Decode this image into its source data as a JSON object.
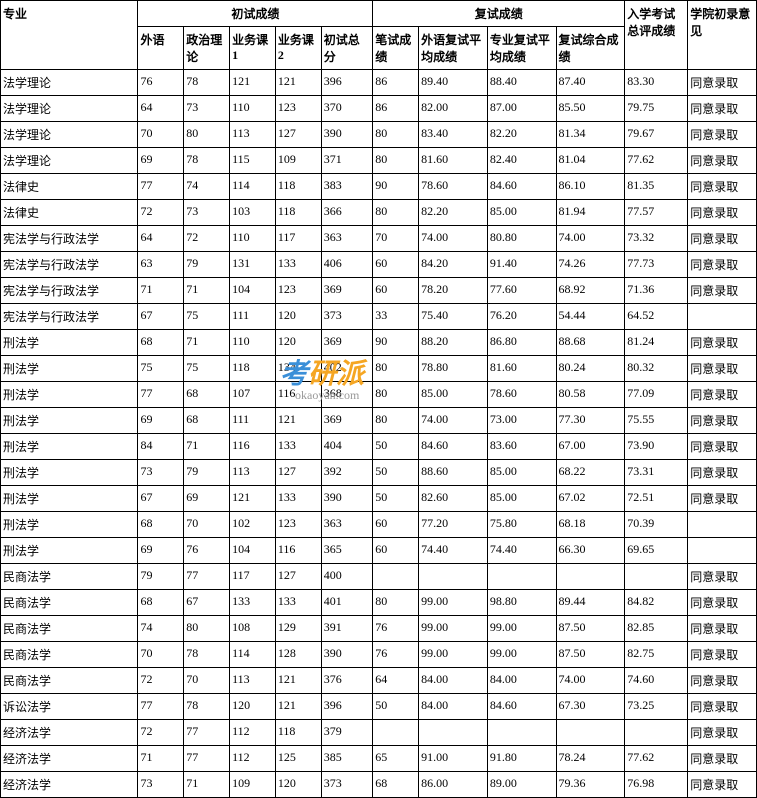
{
  "headers": {
    "major": "专业",
    "prelim_group": "初试成绩",
    "retest_group": "复试成绩",
    "final_total": "入学考试总评成绩",
    "opinion": "学院初录意见",
    "foreign": "外语",
    "politics": "政治理论",
    "course1": "业务课1",
    "course2": "业务课2",
    "prelim_total": "初试总分",
    "written": "笔试成绩",
    "retest_foreign": "外语复试平均成绩",
    "retest_major": "专业复试平均成绩",
    "retest_comp": "复试综合成绩"
  },
  "rows": [
    {
      "major": "法学理论",
      "foreign": "76",
      "politics": "78",
      "c1": "121",
      "c2": "121",
      "ptotal": "396",
      "written": "86",
      "rf": "89.40",
      "rm": "88.40",
      "rc": "87.40",
      "final": "83.30",
      "op": "同意录取"
    },
    {
      "major": "法学理论",
      "foreign": "64",
      "politics": "73",
      "c1": "110",
      "c2": "123",
      "ptotal": "370",
      "written": "86",
      "rf": "82.00",
      "rm": "87.00",
      "rc": "85.50",
      "final": "79.75",
      "op": "同意录取"
    },
    {
      "major": "法学理论",
      "foreign": "70",
      "politics": "80",
      "c1": "113",
      "c2": "127",
      "ptotal": "390",
      "written": "80",
      "rf": "83.40",
      "rm": "82.20",
      "rc": "81.34",
      "final": "79.67",
      "op": "同意录取"
    },
    {
      "major": "法学理论",
      "foreign": "69",
      "politics": "78",
      "c1": "115",
      "c2": "109",
      "ptotal": "371",
      "written": "80",
      "rf": "81.60",
      "rm": "82.40",
      "rc": "81.04",
      "final": "77.62",
      "op": "同意录取"
    },
    {
      "major": "法律史",
      "foreign": "77",
      "politics": "74",
      "c1": "114",
      "c2": "118",
      "ptotal": "383",
      "written": "90",
      "rf": "78.60",
      "rm": "84.60",
      "rc": "86.10",
      "final": "81.35",
      "op": "同意录取"
    },
    {
      "major": "法律史",
      "foreign": "72",
      "politics": "73",
      "c1": "103",
      "c2": "118",
      "ptotal": "366",
      "written": "80",
      "rf": "82.20",
      "rm": "85.00",
      "rc": "81.94",
      "final": "77.57",
      "op": "同意录取"
    },
    {
      "major": "宪法学与行政法学",
      "foreign": "64",
      "politics": "72",
      "c1": "110",
      "c2": "117",
      "ptotal": "363",
      "written": "70",
      "rf": "74.00",
      "rm": "80.80",
      "rc": "74.00",
      "final": "73.32",
      "op": "同意录取"
    },
    {
      "major": "宪法学与行政法学",
      "foreign": "63",
      "politics": "79",
      "c1": "131",
      "c2": "133",
      "ptotal": "406",
      "written": "60",
      "rf": "84.20",
      "rm": "91.40",
      "rc": "74.26",
      "final": "77.73",
      "op": "同意录取"
    },
    {
      "major": "宪法学与行政法学",
      "foreign": "71",
      "politics": "71",
      "c1": "104",
      "c2": "123",
      "ptotal": "369",
      "written": "60",
      "rf": "78.20",
      "rm": "77.60",
      "rc": "68.92",
      "final": "71.36",
      "op": "同意录取"
    },
    {
      "major": "宪法学与行政法学",
      "foreign": "67",
      "politics": "75",
      "c1": "111",
      "c2": "120",
      "ptotal": "373",
      "written": "33",
      "rf": "75.40",
      "rm": "76.20",
      "rc": "54.44",
      "final": "64.52",
      "op": ""
    },
    {
      "major": "刑法学",
      "foreign": "68",
      "politics": "71",
      "c1": "110",
      "c2": "120",
      "ptotal": "369",
      "written": "90",
      "rf": "88.20",
      "rm": "86.80",
      "rc": "88.68",
      "final": "81.24",
      "op": "同意录取"
    },
    {
      "major": "刑法学",
      "foreign": "75",
      "politics": "75",
      "c1": "118",
      "c2": "134",
      "ptotal": "402",
      "written": "80",
      "rf": "78.80",
      "rm": "81.60",
      "rc": "80.24",
      "final": "80.32",
      "op": "同意录取"
    },
    {
      "major": "刑法学",
      "foreign": "77",
      "politics": "68",
      "c1": "107",
      "c2": "116",
      "ptotal": "368",
      "written": "80",
      "rf": "85.00",
      "rm": "78.60",
      "rc": "80.58",
      "final": "77.09",
      "op": "同意录取"
    },
    {
      "major": "刑法学",
      "foreign": "69",
      "politics": "68",
      "c1": "111",
      "c2": "121",
      "ptotal": "369",
      "written": "80",
      "rf": "74.00",
      "rm": "73.00",
      "rc": "77.30",
      "final": "75.55",
      "op": "同意录取"
    },
    {
      "major": "刑法学",
      "foreign": "84",
      "politics": "71",
      "c1": "116",
      "c2": "133",
      "ptotal": "404",
      "written": "50",
      "rf": "84.60",
      "rm": "83.60",
      "rc": "67.00",
      "final": "73.90",
      "op": "同意录取"
    },
    {
      "major": "刑法学",
      "foreign": "73",
      "politics": "79",
      "c1": "113",
      "c2": "127",
      "ptotal": "392",
      "written": "50",
      "rf": "88.60",
      "rm": "85.00",
      "rc": "68.22",
      "final": "73.31",
      "op": "同意录取"
    },
    {
      "major": "刑法学",
      "foreign": "67",
      "politics": "69",
      "c1": "121",
      "c2": "133",
      "ptotal": "390",
      "written": "50",
      "rf": "82.60",
      "rm": "85.00",
      "rc": "67.02",
      "final": "72.51",
      "op": "同意录取"
    },
    {
      "major": "刑法学",
      "foreign": "68",
      "politics": "70",
      "c1": "102",
      "c2": "123",
      "ptotal": "363",
      "written": "60",
      "rf": "77.20",
      "rm": "75.80",
      "rc": "68.18",
      "final": "70.39",
      "op": ""
    },
    {
      "major": "刑法学",
      "foreign": "69",
      "politics": "76",
      "c1": "104",
      "c2": "116",
      "ptotal": "365",
      "written": "60",
      "rf": "74.40",
      "rm": "74.40",
      "rc": "66.30",
      "final": "69.65",
      "op": ""
    },
    {
      "major": "民商法学",
      "foreign": "79",
      "politics": "77",
      "c1": "117",
      "c2": "127",
      "ptotal": "400",
      "written": "",
      "rf": "",
      "rm": "",
      "rc": "",
      "final": "",
      "op": "同意录取"
    },
    {
      "major": "民商法学",
      "foreign": "68",
      "politics": "67",
      "c1": "133",
      "c2": "133",
      "ptotal": "401",
      "written": "80",
      "rf": "99.00",
      "rm": "98.80",
      "rc": "89.44",
      "final": "84.82",
      "op": "同意录取"
    },
    {
      "major": "民商法学",
      "foreign": "74",
      "politics": "80",
      "c1": "108",
      "c2": "129",
      "ptotal": "391",
      "written": "76",
      "rf": "99.00",
      "rm": "99.00",
      "rc": "87.50",
      "final": "82.85",
      "op": "同意录取"
    },
    {
      "major": "民商法学",
      "foreign": "70",
      "politics": "78",
      "c1": "114",
      "c2": "128",
      "ptotal": "390",
      "written": "76",
      "rf": "99.00",
      "rm": "99.00",
      "rc": "87.50",
      "final": "82.75",
      "op": "同意录取"
    },
    {
      "major": "民商法学",
      "foreign": "72",
      "politics": "70",
      "c1": "113",
      "c2": "121",
      "ptotal": "376",
      "written": "64",
      "rf": "84.00",
      "rm": "84.00",
      "rc": "74.00",
      "final": "74.60",
      "op": "同意录取"
    },
    {
      "major": "诉讼法学",
      "foreign": "77",
      "politics": "78",
      "c1": "120",
      "c2": "121",
      "ptotal": "396",
      "written": "50",
      "rf": "84.00",
      "rm": "84.60",
      "rc": "67.30",
      "final": "73.25",
      "op": "同意录取"
    },
    {
      "major": "经济法学",
      "foreign": "72",
      "politics": "77",
      "c1": "112",
      "c2": "118",
      "ptotal": "379",
      "written": "",
      "rf": "",
      "rm": "",
      "rc": "",
      "final": "",
      "op": "同意录取"
    },
    {
      "major": "经济法学",
      "foreign": "71",
      "politics": "77",
      "c1": "112",
      "c2": "125",
      "ptotal": "385",
      "written": "65",
      "rf": "91.00",
      "rm": "91.80",
      "rc": "78.24",
      "final": "77.62",
      "op": "同意录取"
    },
    {
      "major": "经济法学",
      "foreign": "73",
      "politics": "71",
      "c1": "109",
      "c2": "120",
      "ptotal": "373",
      "written": "68",
      "rf": "86.00",
      "rm": "89.00",
      "rc": "79.36",
      "final": "76.98",
      "op": "同意录取"
    }
  ],
  "watermark": {
    "text1": "考",
    "text2": "研派",
    "sub": "okaoyan.com"
  }
}
